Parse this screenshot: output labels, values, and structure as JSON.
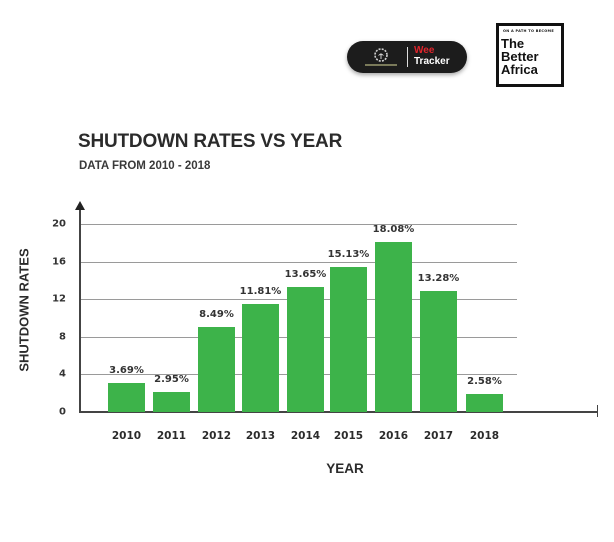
{
  "logos": {
    "weetracker": {
      "line1": "Wee",
      "line2": "Tracker",
      "icon": "gear-leaf-icon",
      "bg_color": "#1c1c1c",
      "accent_color": "#e0242b"
    },
    "the_better_africa": {
      "tagline": "ON A PATH TO BECOME",
      "line1": "The",
      "line2": "Better",
      "line3": "Africa"
    }
  },
  "chart_data": {
    "type": "bar",
    "title": "SHUTDOWN RATES VS YEAR",
    "subtitle": "DATA FROM 2010 - 2018",
    "xlabel": "YEAR",
    "ylabel": "SHUTDOWN RATES",
    "categories": [
      "2010",
      "2011",
      "2012",
      "2013",
      "2014",
      "2015",
      "2016",
      "2017",
      "2018"
    ],
    "values": [
      3.69,
      2.95,
      8.49,
      11.81,
      13.65,
      15.13,
      18.08,
      13.28,
      2.58
    ],
    "value_labels": [
      "3.69%",
      "2.95%",
      "8.49%",
      "11.81%",
      "13.65%",
      "15.13%",
      "18.08%",
      "13.28%",
      "2.58%"
    ],
    "display_heights": [
      3.1,
      2.1,
      9.0,
      11.5,
      13.3,
      15.4,
      18.1,
      12.9,
      1.9
    ],
    "yticks": [
      "0",
      "4",
      "8",
      "12",
      "16",
      "20"
    ],
    "ylim": [
      0,
      20
    ],
    "grid": true,
    "legend": null,
    "bar_color": "#3db34a"
  }
}
